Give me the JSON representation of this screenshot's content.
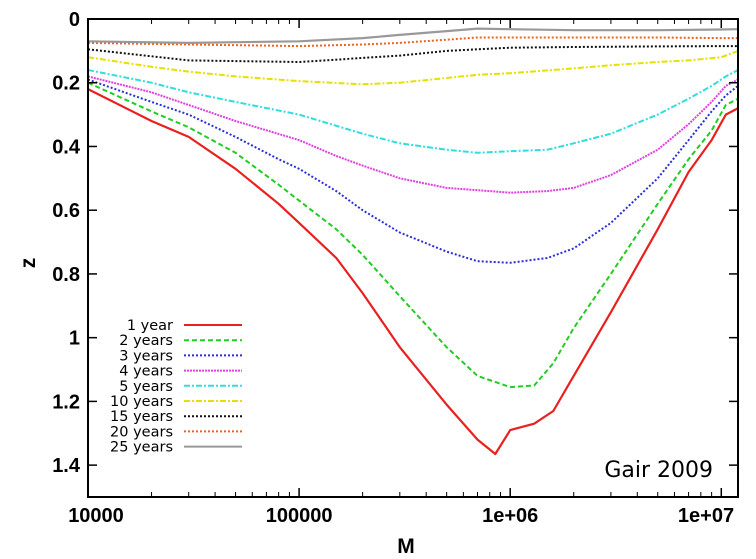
{
  "chart_data": {
    "type": "line",
    "xlabel": "M",
    "ylabel": "z",
    "x_scale": "log",
    "xlim": [
      10000,
      12000000
    ],
    "ylim": [
      0,
      1.5
    ],
    "y_inverted": true,
    "x_ticks": [
      {
        "value": 10000,
        "label": "10000"
      },
      {
        "value": 100000,
        "label": "100000"
      },
      {
        "value": 1000000,
        "label": "1e+06"
      },
      {
        "value": 10000000,
        "label": "1e+07"
      }
    ],
    "y_ticks": [
      {
        "value": 0,
        "label": "0"
      },
      {
        "value": 0.2,
        "label": "0.2"
      },
      {
        "value": 0.4,
        "label": "0.4"
      },
      {
        "value": 0.6,
        "label": "0.6"
      },
      {
        "value": 0.8,
        "label": "0.8"
      },
      {
        "value": 1,
        "label": "1"
      },
      {
        "value": 1.2,
        "label": "1.2"
      },
      {
        "value": 1.4,
        "label": "1.4"
      }
    ],
    "legend_position": "bottom-left",
    "annotation": "Gair 2009",
    "grid": false,
    "series": [
      {
        "name": "1 year",
        "color": "#e8211e",
        "dash": "solid",
        "x": [
          10000,
          20000,
          30000,
          50000,
          80000,
          100000,
          150000,
          200000,
          300000,
          500000,
          700000,
          850000,
          1000000,
          1300000,
          1600000,
          2000000,
          3000000,
          5000000,
          7000000,
          9000000,
          10500000,
          12000000
        ],
        "y": [
          0.22,
          0.32,
          0.37,
          0.47,
          0.58,
          0.64,
          0.75,
          0.86,
          1.03,
          1.21,
          1.32,
          1.365,
          1.29,
          1.27,
          1.23,
          1.12,
          0.92,
          0.66,
          0.48,
          0.38,
          0.3,
          0.28
        ]
      },
      {
        "name": "2 years",
        "color": "#22cc22",
        "dash": "5,3",
        "x": [
          10000,
          20000,
          30000,
          50000,
          80000,
          100000,
          150000,
          200000,
          300000,
          500000,
          700000,
          1000000,
          1300000,
          1600000,
          2000000,
          3000000,
          5000000,
          7000000,
          9000000,
          10500000,
          12000000
        ],
        "y": [
          0.2,
          0.29,
          0.34,
          0.42,
          0.52,
          0.57,
          0.66,
          0.74,
          0.87,
          1.03,
          1.12,
          1.155,
          1.15,
          1.08,
          0.97,
          0.8,
          0.58,
          0.44,
          0.35,
          0.27,
          0.25
        ]
      },
      {
        "name": "3 years",
        "color": "#2a2fd6",
        "dash": "2,2",
        "x": [
          10000,
          20000,
          30000,
          50000,
          80000,
          100000,
          150000,
          200000,
          300000,
          500000,
          700000,
          1000000,
          1500000,
          2000000,
          3000000,
          5000000,
          7000000,
          9000000,
          10500000,
          12000000
        ],
        "y": [
          0.19,
          0.26,
          0.3,
          0.37,
          0.44,
          0.47,
          0.54,
          0.6,
          0.67,
          0.73,
          0.76,
          0.765,
          0.75,
          0.72,
          0.64,
          0.5,
          0.38,
          0.29,
          0.24,
          0.21
        ]
      },
      {
        "name": "4 years",
        "color": "#e040e0",
        "dash": "2,1",
        "x": [
          10000,
          20000,
          30000,
          50000,
          100000,
          150000,
          200000,
          300000,
          500000,
          800000,
          1000000,
          1500000,
          2000000,
          3000000,
          5000000,
          7000000,
          9000000,
          10500000,
          12000000
        ],
        "y": [
          0.18,
          0.23,
          0.27,
          0.32,
          0.38,
          0.43,
          0.46,
          0.5,
          0.53,
          0.54,
          0.545,
          0.54,
          0.53,
          0.49,
          0.41,
          0.33,
          0.26,
          0.21,
          0.19
        ]
      },
      {
        "name": "5 years",
        "color": "#33dddd",
        "dash": "6,2,2,2",
        "x": [
          10000,
          20000,
          30000,
          50000,
          100000,
          200000,
          300000,
          500000,
          700000,
          1000000,
          1500000,
          2000000,
          3000000,
          5000000,
          7000000,
          9000000,
          10500000,
          12000000
        ],
        "y": [
          0.16,
          0.2,
          0.23,
          0.26,
          0.3,
          0.36,
          0.39,
          0.41,
          0.42,
          0.415,
          0.41,
          0.39,
          0.36,
          0.3,
          0.25,
          0.21,
          0.18,
          0.16
        ]
      },
      {
        "name": "10 years",
        "color": "#e6e000",
        "dash": "6,2,2,2",
        "x": [
          10000,
          20000,
          30000,
          50000,
          100000,
          200000,
          300000,
          500000,
          700000,
          1000000,
          2000000,
          3000000,
          5000000,
          7000000,
          10000000,
          12000000
        ],
        "y": [
          0.12,
          0.15,
          0.165,
          0.18,
          0.195,
          0.205,
          0.2,
          0.185,
          0.175,
          0.17,
          0.155,
          0.145,
          0.135,
          0.13,
          0.12,
          0.1
        ]
      },
      {
        "name": "15 years",
        "color": "#111111",
        "dash": "2,2",
        "x": [
          10000,
          30000,
          100000,
          300000,
          500000,
          700000,
          1000000,
          2000000,
          5000000,
          10000000,
          12000000
        ],
        "y": [
          0.095,
          0.13,
          0.135,
          0.115,
          0.1,
          0.095,
          0.09,
          0.088,
          0.086,
          0.085,
          0.085
        ]
      },
      {
        "name": "20 years",
        "color": "#f06020",
        "dash": "2,2",
        "x": [
          10000,
          30000,
          100000,
          200000,
          300000,
          500000,
          700000,
          1000000,
          2000000,
          5000000,
          10000000,
          12000000
        ],
        "y": [
          0.075,
          0.08,
          0.085,
          0.08,
          0.075,
          0.065,
          0.058,
          0.058,
          0.058,
          0.058,
          0.06,
          0.06
        ]
      },
      {
        "name": "25 years",
        "color": "#999999",
        "dash": "solid",
        "x": [
          10000,
          30000,
          100000,
          200000,
          300000,
          500000,
          700000,
          1000000,
          2000000,
          5000000,
          10000000,
          12000000
        ],
        "y": [
          0.07,
          0.075,
          0.07,
          0.06,
          0.05,
          0.038,
          0.03,
          0.032,
          0.035,
          0.035,
          0.033,
          0.032
        ]
      }
    ]
  }
}
